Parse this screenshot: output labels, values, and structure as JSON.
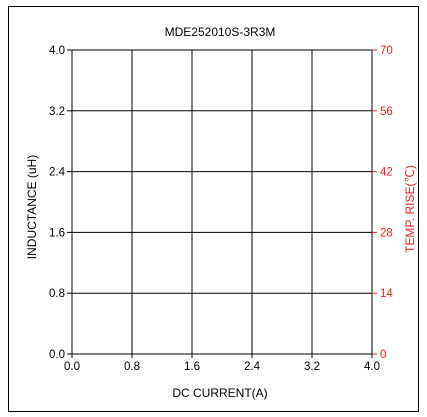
{
  "chart_data": {
    "type": "line",
    "title": "MDE252010S-3R3M",
    "xlabel": "DC CURRENT(A)",
    "ylabel": "INDUCTANCE (uH)",
    "y2label": "TEMP. RISE(℃)",
    "xlim": [
      0.0,
      4.0
    ],
    "ylim": [
      0.0,
      4.0
    ],
    "y2lim": [
      0,
      70
    ],
    "x_ticks": [
      "0.0",
      "0.8",
      "1.6",
      "2.4",
      "3.2",
      "4.0"
    ],
    "y_ticks": [
      "0.0",
      "0.8",
      "1.6",
      "2.4",
      "3.2",
      "4.0"
    ],
    "y2_ticks": [
      "0",
      "14",
      "28",
      "42",
      "56",
      "70"
    ],
    "grid": true,
    "series": []
  },
  "colors": {
    "frame": "#000000",
    "grid": "#000000",
    "secondary_axis": "#e8231f",
    "background": "#ffffff"
  }
}
